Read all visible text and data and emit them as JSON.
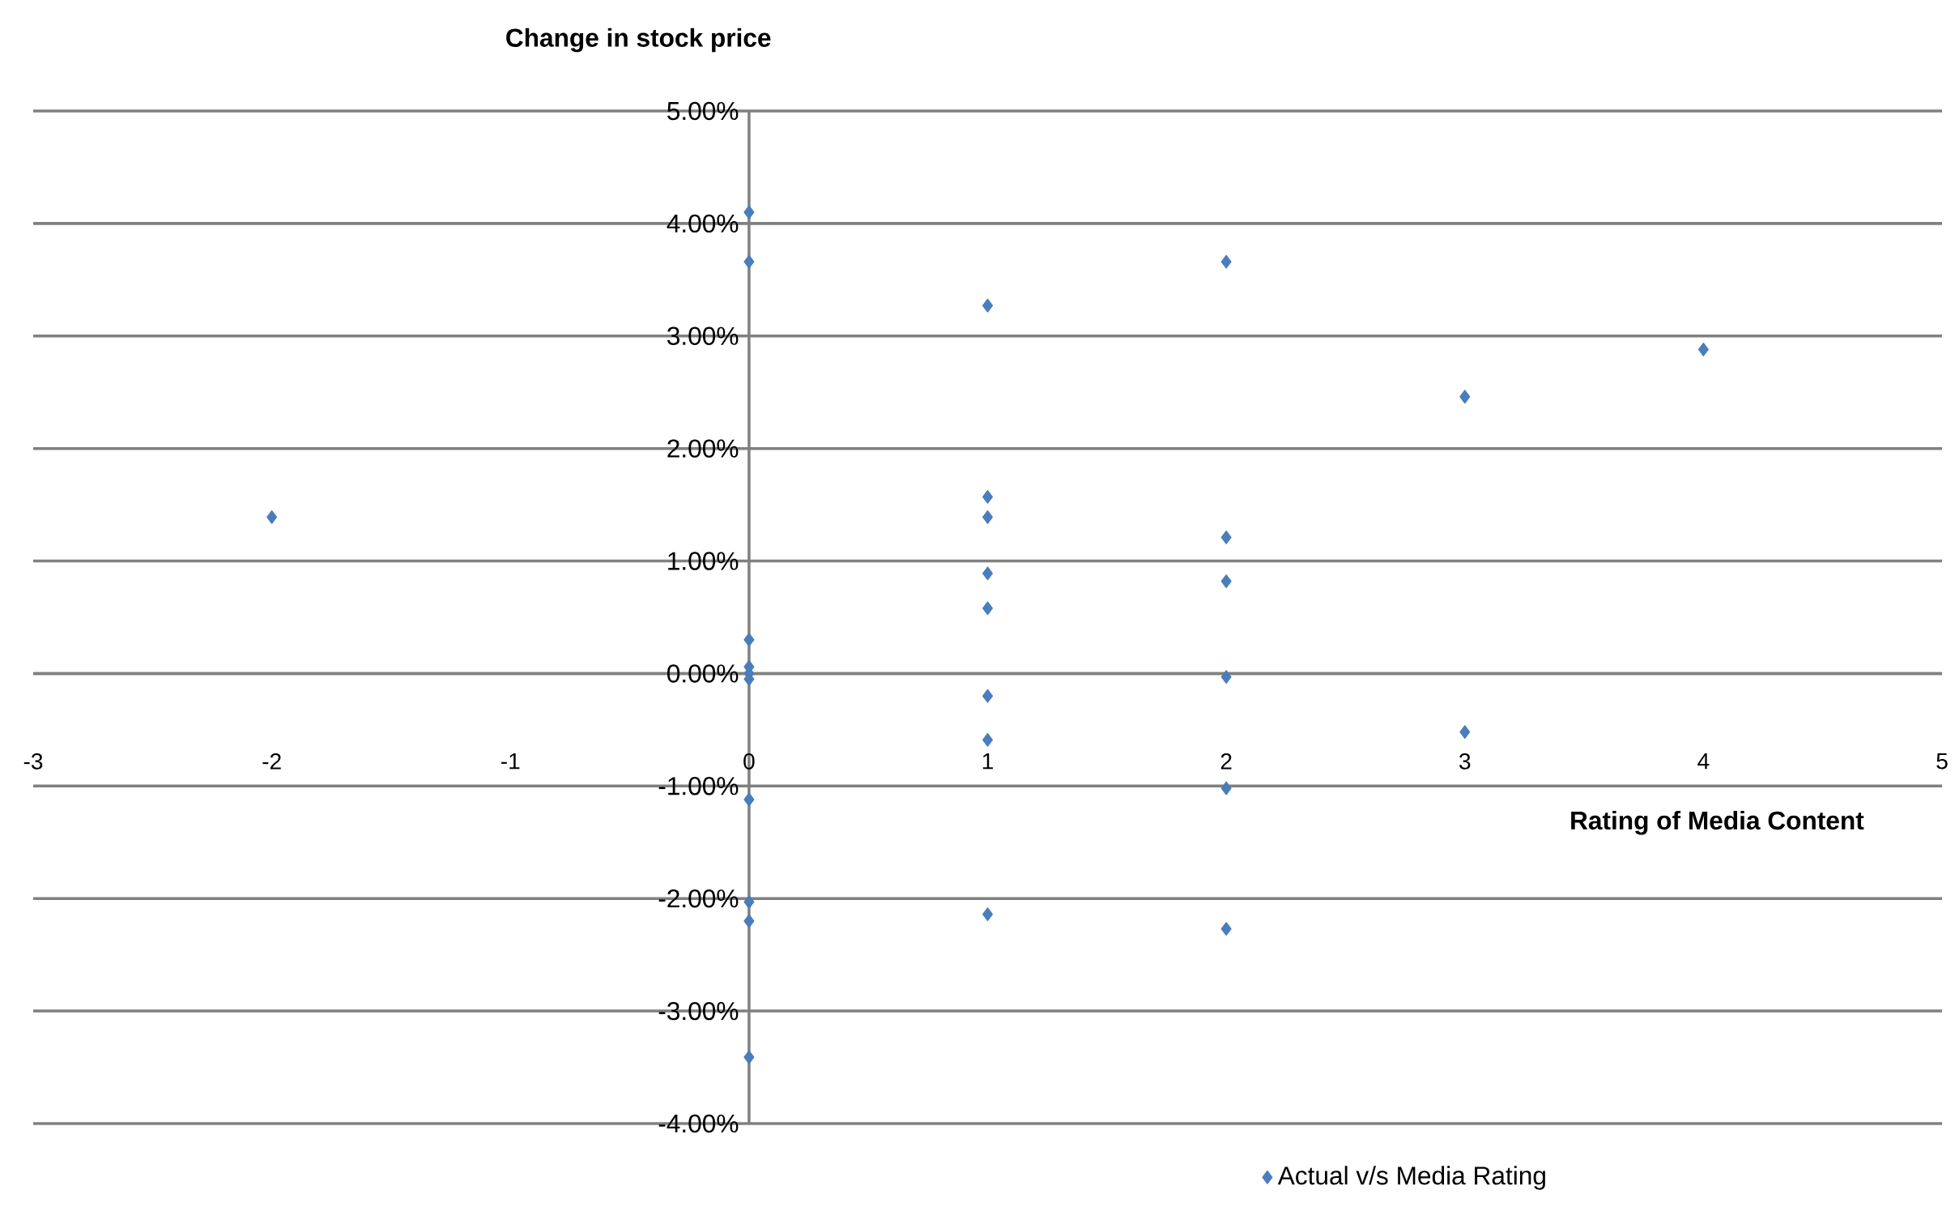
{
  "chart_data": {
    "type": "scatter",
    "xlabel": "Rating of Media Content",
    "ylabel": "Change in stock price",
    "xlim": [
      -3,
      5
    ],
    "xticks": [
      -3,
      -2,
      -1,
      0,
      1,
      2,
      3,
      4,
      5
    ],
    "ylim": [
      -4,
      5
    ],
    "yticks": [
      {
        "value": -4,
        "label": "-4.00%"
      },
      {
        "value": -3,
        "label": "-3.00%"
      },
      {
        "value": -2,
        "label": "-2.00%"
      },
      {
        "value": -1,
        "label": "-1.00%"
      },
      {
        "value": 0,
        "label": "0.00%"
      },
      {
        "value": 1,
        "label": "1.00%"
      },
      {
        "value": 2,
        "label": "2.00%"
      },
      {
        "value": 3,
        "label": "3.00%"
      },
      {
        "value": 4,
        "label": "4.00%"
      },
      {
        "value": 5,
        "label": "5.00%"
      }
    ],
    "grid": "y",
    "legend": "bottom",
    "marker": "diamond",
    "series": [
      {
        "name": "Actual v/s Media Rating",
        "color": "#4a7ebb",
        "x": [
          0,
          0,
          0,
          0,
          0,
          0,
          0,
          0,
          0,
          0,
          1,
          1,
          1,
          1,
          1,
          1,
          1,
          1,
          2,
          2,
          2,
          2,
          2,
          2,
          3,
          3,
          4,
          -2
        ],
        "values": [
          4.1,
          3.66,
          0.3,
          0.06,
          0.0,
          -0.05,
          -1.12,
          -2.03,
          -2.2,
          -3.41,
          3.27,
          1.57,
          1.39,
          0.89,
          0.58,
          -0.2,
          -0.59,
          -2.14,
          3.66,
          1.21,
          0.82,
          -0.03,
          -1.02,
          -2.27,
          2.46,
          -0.52,
          2.88,
          1.39
        ]
      }
    ]
  }
}
